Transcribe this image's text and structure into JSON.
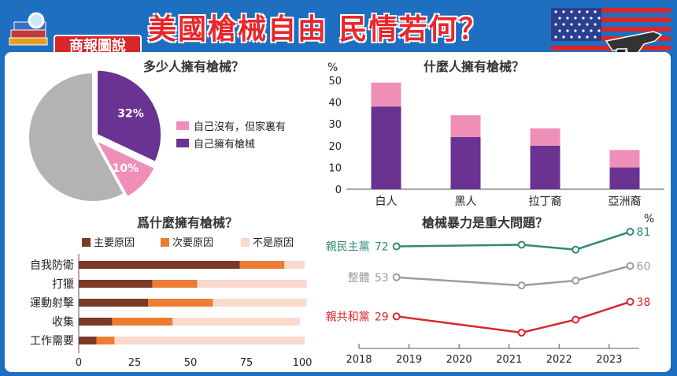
{
  "header": {
    "badge": "商報圖說",
    "headline": "美國槍械自由 民情若何？"
  },
  "pie": {
    "title": "多少人擁有槍械？",
    "slices": [
      {
        "label": "自己擁有槍械",
        "value": 32,
        "display": "32%",
        "color": "#6a3291"
      },
      {
        "label": "自己沒有，但家裏有",
        "value": 10,
        "display": "10%",
        "color": "#ef8fb7"
      },
      {
        "label": "",
        "value": 58,
        "display": "",
        "color": "#b3b3b3"
      }
    ],
    "legend": [
      "自己沒有，但家裏有",
      "自己擁有槍械"
    ]
  },
  "stack": {
    "title": "什麼人擁有槍械？",
    "unit": "%",
    "ylim": [
      0,
      50
    ],
    "yticks": [
      "0",
      "10",
      "20",
      "30",
      "40",
      "50"
    ],
    "categories": [
      "白人",
      "黑人",
      "拉丁裔",
      "亞洲裔"
    ],
    "own": [
      38,
      24,
      20,
      10
    ],
    "household": [
      11,
      10,
      8,
      8
    ],
    "colors": {
      "own": "#6a3291",
      "household": "#ef8fb7"
    }
  },
  "reasons": {
    "title": "爲什麼擁有槍械？",
    "legend": [
      "主要原因",
      "次要原因",
      "不是原因"
    ],
    "colors": [
      "#7a3a26",
      "#ee7d33",
      "#fbd9cc"
    ],
    "categories": [
      "自我防衛",
      "打獵",
      "運動射擊",
      "收集",
      "工作需要"
    ],
    "major": [
      72,
      33,
      31,
      15,
      8
    ],
    "minor": [
      20,
      20,
      29,
      27,
      8
    ],
    "not": [
      9,
      49,
      42,
      57,
      85
    ],
    "xticks": [
      "0",
      "25",
      "50",
      "75",
      "100"
    ]
  },
  "lines": {
    "title": "槍械暴力是重大問題？",
    "unit": "%",
    "xticks": [
      "2018",
      "2019",
      "2020",
      "2021",
      "2022",
      "2023"
    ],
    "series": [
      {
        "name": "親民主黨",
        "color": "#2f8a74",
        "x": [
          2018.75,
          2021.25,
          2022.33,
          2023.42
        ],
        "values": [
          72,
          73,
          70,
          81
        ],
        "start": "72",
        "end": "81"
      },
      {
        "name": "整體",
        "color": "#9c9c9c",
        "x": [
          2018.75,
          2021.25,
          2022.33,
          2023.42
        ],
        "values": [
          53,
          48,
          51,
          60
        ],
        "start": "53",
        "end": "60"
      },
      {
        "name": "親共和黨",
        "color": "#d9262b",
        "x": [
          2018.75,
          2021.25,
          2022.33,
          2023.42
        ],
        "values": [
          29,
          19,
          27,
          38
        ],
        "start": "29",
        "end": "38"
      }
    ]
  }
}
